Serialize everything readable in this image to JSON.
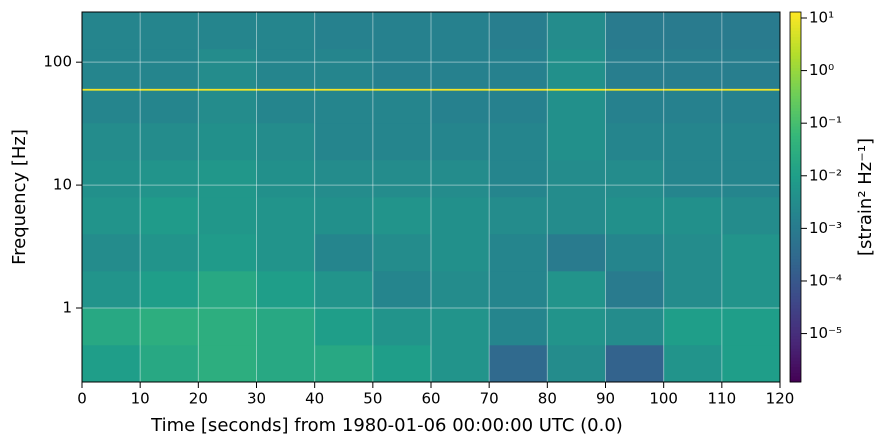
{
  "chart_data": {
    "type": "spectrogram",
    "xlabel": "Time [seconds] from 1980-01-06 00:00:00 UTC (0.0)",
    "ylabel": "Frequency [Hz]",
    "colorbar_label": "[strain² Hz⁻¹]",
    "colormap": "viridis",
    "ylog": true,
    "clog": true,
    "grid": true,
    "x_edges": [
      0,
      10,
      20,
      30,
      40,
      50,
      60,
      70,
      80,
      90,
      100,
      110,
      120
    ],
    "y_edges": [
      0.25,
      0.5,
      1,
      2,
      4,
      8,
      16,
      32,
      59,
      61,
      128,
      256
    ],
    "values": [
      [
        0.01,
        0.02,
        0.03,
        0.02,
        0.02,
        0.01,
        0.005,
        0.0003,
        0.003,
        0.0002,
        0.005,
        0.01
      ],
      [
        0.02,
        0.03,
        0.03,
        0.02,
        0.01,
        0.005,
        0.005,
        0.002,
        0.005,
        0.003,
        0.01,
        0.01
      ],
      [
        0.005,
        0.01,
        0.02,
        0.01,
        0.005,
        0.002,
        0.003,
        0.002,
        0.005,
        0.001,
        0.003,
        0.005
      ],
      [
        0.003,
        0.005,
        0.008,
        0.005,
        0.002,
        0.003,
        0.004,
        0.002,
        0.001,
        0.002,
        0.003,
        0.005
      ],
      [
        0.005,
        0.008,
        0.006,
        0.005,
        0.004,
        0.005,
        0.004,
        0.003,
        0.003,
        0.004,
        0.004,
        0.003
      ],
      [
        0.004,
        0.005,
        0.006,
        0.004,
        0.003,
        0.003,
        0.003,
        0.002,
        0.003,
        0.003,
        0.002,
        0.002
      ],
      [
        0.003,
        0.003,
        0.004,
        0.003,
        0.002,
        0.002,
        0.002,
        0.002,
        0.004,
        0.002,
        0.002,
        0.002
      ],
      [
        0.002,
        0.002,
        0.003,
        0.002,
        0.002,
        0.002,
        0.0015,
        0.0015,
        0.004,
        0.0015,
        0.0015,
        0.0015
      ],
      [
        10,
        10,
        10,
        10,
        10,
        10,
        10,
        10,
        10,
        10,
        10,
        10
      ],
      [
        0.002,
        0.002,
        0.003,
        0.002,
        0.002,
        0.0015,
        0.0015,
        0.0015,
        0.004,
        0.0012,
        0.0012,
        0.0012
      ],
      [
        0.002,
        0.002,
        0.002,
        0.002,
        0.0015,
        0.0015,
        0.0015,
        0.0012,
        0.003,
        0.001,
        0.001,
        0.001
      ]
    ],
    "xlim": [
      0,
      120
    ],
    "xticks": [
      0,
      10,
      20,
      30,
      40,
      50,
      60,
      70,
      80,
      90,
      100,
      110,
      120
    ],
    "ylim": [
      0.25,
      256
    ],
    "yticks": [
      1,
      10,
      100
    ],
    "clim": [
      1.2e-06,
      13
    ],
    "cticks": [
      {
        "value": 1e-05,
        "label": "10⁻⁵"
      },
      {
        "value": 0.0001,
        "label": "10⁻⁴"
      },
      {
        "value": 0.001,
        "label": "10⁻³"
      },
      {
        "value": 0.01,
        "label": "10⁻²"
      },
      {
        "value": 0.1,
        "label": "10⁻¹"
      },
      {
        "value": 1,
        "label": "10⁰"
      },
      {
        "value": 10,
        "label": "10¹"
      }
    ]
  }
}
